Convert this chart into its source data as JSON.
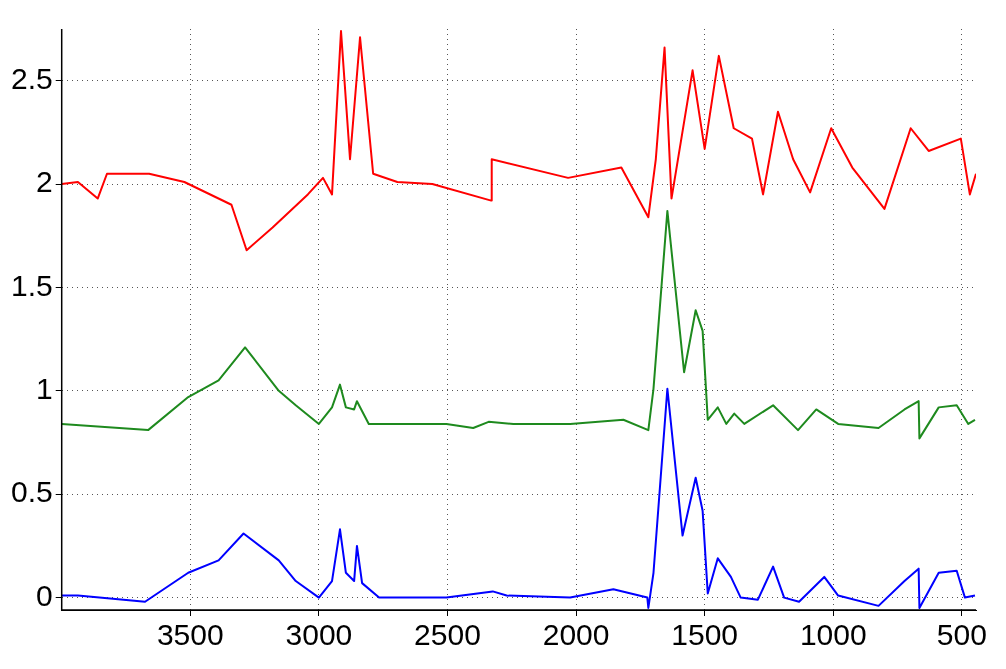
{
  "chart_data": {
    "type": "line",
    "xlim": [
      4000,
      445
    ],
    "xticks": [
      3500,
      3000,
      2500,
      2000,
      1500,
      1000,
      500
    ],
    "ylim": [
      -0.06,
      2.75
    ],
    "yticks": [
      0,
      0.5,
      1,
      1.5,
      2,
      2.5
    ],
    "grid": true,
    "legend": false,
    "line_style": "solid",
    "marker": "none",
    "series": [
      {
        "color": "#ff0000",
        "x": [
          4000,
          3937,
          3860,
          3824,
          3660,
          3523,
          3340,
          3281,
          3180,
          3043,
          2984,
          2949,
          2914,
          2879,
          2840,
          2789,
          2695,
          2559,
          2330,
          2328,
          2031,
          1824,
          1719,
          1690,
          1656,
          1629,
          1547,
          1500,
          1445,
          1387,
          1316,
          1273,
          1215,
          1156,
          1090,
          1008,
          926,
          801,
          699,
          629,
          504,
          469,
          445
        ],
        "values": [
          2.0,
          2.01,
          1.93,
          2.05,
          2.05,
          2.01,
          1.9,
          1.68,
          1.79,
          1.95,
          2.03,
          1.95,
          2.74,
          2.12,
          2.71,
          2.05,
          2.01,
          2.0,
          1.92,
          2.12,
          2.03,
          2.08,
          1.84,
          2.12,
          2.66,
          1.93,
          2.55,
          2.17,
          2.62,
          2.27,
          2.22,
          1.95,
          2.35,
          2.12,
          1.96,
          2.27,
          2.08,
          1.88,
          2.27,
          2.16,
          2.22,
          1.95,
          2.05
        ]
      },
      {
        "color": "#1e8a1e",
        "x": [
          4000,
          3664,
          3508,
          3390,
          3287,
          3156,
          3090,
          3000,
          2949,
          2918,
          2895,
          2863,
          2852,
          2806,
          2504,
          2400,
          2340,
          2244,
          2023,
          1816,
          1719,
          1699,
          1645,
          1580,
          1535,
          1508,
          1488,
          1449,
          1416,
          1385,
          1346,
          1234,
          1137,
          1066,
          981,
          824,
          723,
          668,
          665,
          590,
          520,
          475,
          449
        ],
        "values": [
          0.84,
          0.81,
          0.97,
          1.05,
          1.21,
          1.0,
          0.93,
          0.84,
          0.92,
          1.03,
          0.92,
          0.91,
          0.95,
          0.84,
          0.84,
          0.82,
          0.85,
          0.84,
          0.84,
          0.86,
          0.81,
          1.01,
          1.87,
          1.09,
          1.39,
          1.29,
          0.86,
          0.92,
          0.84,
          0.89,
          0.84,
          0.93,
          0.81,
          0.91,
          0.84,
          0.82,
          0.91,
          0.95,
          0.77,
          0.92,
          0.93,
          0.84,
          0.86
        ]
      },
      {
        "color": "#0000ff",
        "x": [
          4000,
          3937,
          3676,
          3508,
          3390,
          3293,
          3156,
          3090,
          3000,
          2949,
          2918,
          2895,
          2863,
          2852,
          2832,
          2766,
          2504,
          2324,
          2270,
          2023,
          1855,
          1723,
          1719,
          1699,
          1645,
          1586,
          1535,
          1508,
          1488,
          1449,
          1398,
          1360,
          1293,
          1234,
          1191,
          1133,
          1035,
          981,
          824,
          723,
          668,
          665,
          590,
          520,
          488,
          449
        ],
        "values": [
          0.01,
          0.01,
          -0.02,
          0.12,
          0.18,
          0.31,
          0.18,
          0.08,
          0.0,
          0.08,
          0.33,
          0.12,
          0.08,
          0.25,
          0.07,
          0.0,
          0.0,
          0.03,
          0.01,
          0.0,
          0.04,
          0.0,
          -0.05,
          0.12,
          1.01,
          0.3,
          0.58,
          0.42,
          0.02,
          0.19,
          0.1,
          0.0,
          -0.01,
          0.15,
          0.0,
          -0.02,
          0.1,
          0.01,
          -0.04,
          0.08,
          0.14,
          -0.05,
          0.12,
          0.13,
          0.0,
          0.01
        ]
      }
    ]
  }
}
